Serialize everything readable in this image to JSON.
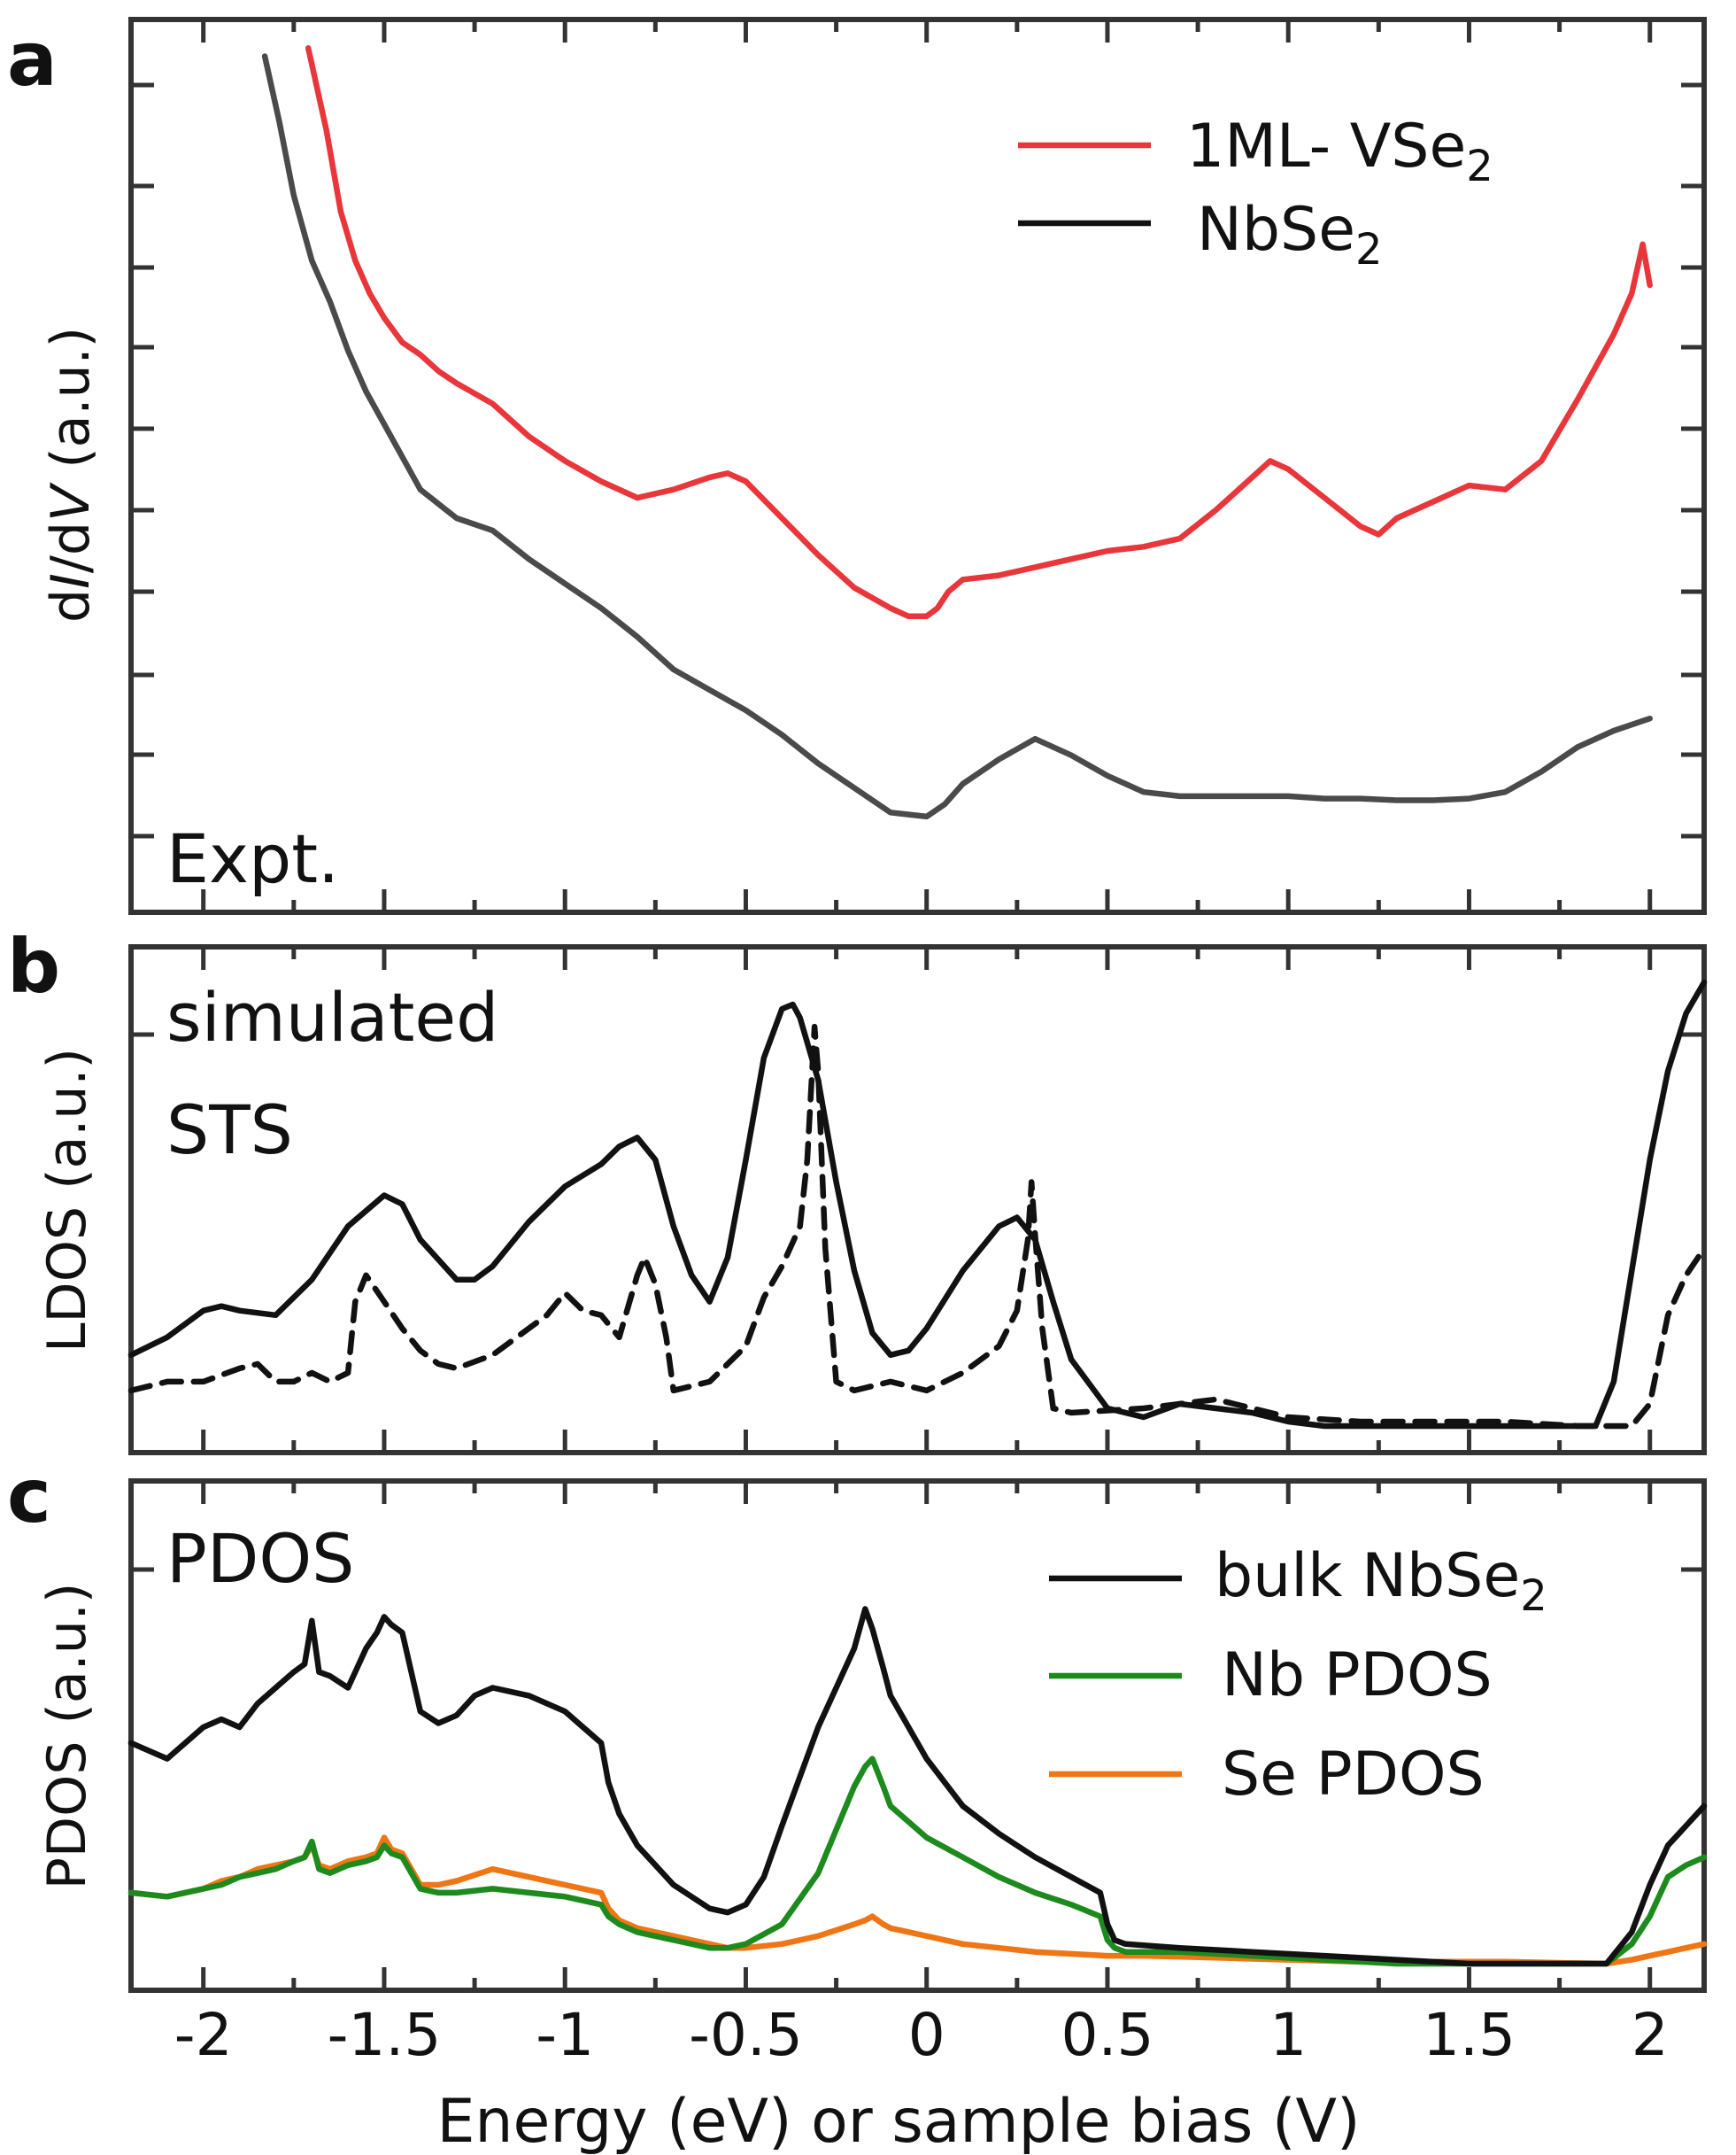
{
  "figure": {
    "panel_a_letter": "a",
    "panel_b_letter": "b",
    "panel_c_letter": "c",
    "xlabel": "Energy (eV) or sample bias (V)",
    "x_ticks": [
      "-2",
      "-1.5",
      "-1",
      "-0.5",
      "0",
      "0.5",
      "1",
      "1.5",
      "2"
    ]
  },
  "chart_data": [
    {
      "type": "line",
      "panel": "a",
      "annotation": "Expt.",
      "ylabel_parts": [
        "d",
        "I",
        "/d",
        "V",
        " (a.u.)"
      ],
      "xlim": [
        -2.2,
        2.15
      ],
      "ylim": [
        0,
        10
      ],
      "grid": false,
      "legend_position": "top-right",
      "series": [
        {
          "name": "1ML- VSe2",
          "name_main": "1ML- VSe",
          "name_sub": "2",
          "color": "#e8363a",
          "style": "solid",
          "x": [
            -1.71,
            -1.66,
            -1.62,
            -1.58,
            -1.54,
            -1.5,
            -1.45,
            -1.4,
            -1.35,
            -1.3,
            -1.2,
            -1.1,
            -1.0,
            -0.9,
            -0.8,
            -0.7,
            -0.6,
            -0.55,
            -0.5,
            -0.4,
            -0.3,
            -0.2,
            -0.1,
            -0.05,
            0.0,
            0.03,
            0.06,
            0.1,
            0.2,
            0.3,
            0.4,
            0.5,
            0.6,
            0.7,
            0.8,
            0.9,
            0.95,
            1.0,
            1.1,
            1.2,
            1.25,
            1.3,
            1.4,
            1.5,
            1.6,
            1.7,
            1.8,
            1.9,
            1.95,
            1.98,
            2.0
          ],
          "y": [
            10.3,
            9.3,
            8.3,
            7.7,
            7.3,
            7.0,
            6.7,
            6.55,
            6.35,
            6.2,
            5.95,
            5.55,
            5.25,
            5.0,
            4.8,
            4.9,
            5.05,
            5.1,
            5.0,
            4.55,
            4.1,
            3.7,
            3.45,
            3.35,
            3.35,
            3.45,
            3.65,
            3.8,
            3.85,
            3.95,
            4.05,
            4.15,
            4.2,
            4.3,
            4.65,
            5.05,
            5.25,
            5.15,
            4.8,
            4.45,
            4.35,
            4.55,
            4.75,
            4.95,
            4.9,
            5.25,
            6.0,
            6.8,
            7.3,
            7.9,
            7.4
          ]
        },
        {
          "name": "NbSe2",
          "name_main": "NbSe",
          "name_sub": "2",
          "color": "#4a4a4a",
          "style": "solid",
          "x": [
            -1.83,
            -1.79,
            -1.75,
            -1.7,
            -1.65,
            -1.6,
            -1.55,
            -1.5,
            -1.45,
            -1.4,
            -1.3,
            -1.2,
            -1.1,
            -1.0,
            -0.9,
            -0.8,
            -0.7,
            -0.6,
            -0.5,
            -0.4,
            -0.3,
            -0.2,
            -0.1,
            0.0,
            0.05,
            0.1,
            0.2,
            0.3,
            0.4,
            0.5,
            0.6,
            0.7,
            0.8,
            0.9,
            1.0,
            1.1,
            1.2,
            1.3,
            1.4,
            1.5,
            1.6,
            1.7,
            1.8,
            1.9,
            2.0
          ],
          "y": [
            10.2,
            9.4,
            8.5,
            7.7,
            7.2,
            6.6,
            6.1,
            5.7,
            5.3,
            4.9,
            4.55,
            4.4,
            4.05,
            3.75,
            3.45,
            3.1,
            2.7,
            2.45,
            2.2,
            1.9,
            1.55,
            1.25,
            0.95,
            0.9,
            1.05,
            1.3,
            1.6,
            1.85,
            1.65,
            1.4,
            1.2,
            1.15,
            1.15,
            1.15,
            1.15,
            1.12,
            1.12,
            1.1,
            1.1,
            1.12,
            1.2,
            1.45,
            1.75,
            1.95,
            2.1
          ]
        }
      ]
    },
    {
      "type": "line",
      "panel": "b",
      "annotation_lines": [
        "simulated",
        "STS"
      ],
      "ylabel": "LDOS (a.u.)",
      "xlim": [
        -2.2,
        2.15
      ],
      "ylim": [
        0,
        1
      ],
      "grid": false,
      "series": [
        {
          "color": "#111111",
          "style": "solid",
          "x": [
            -2.2,
            -2.1,
            -2.0,
            -1.95,
            -1.9,
            -1.8,
            -1.7,
            -1.6,
            -1.5,
            -1.45,
            -1.4,
            -1.3,
            -1.25,
            -1.2,
            -1.1,
            -1.0,
            -0.9,
            -0.85,
            -0.8,
            -0.75,
            -0.7,
            -0.65,
            -0.6,
            -0.55,
            -0.5,
            -0.45,
            -0.4,
            -0.37,
            -0.35,
            -0.3,
            -0.25,
            -0.2,
            -0.15,
            -0.1,
            -0.05,
            0.0,
            0.1,
            0.2,
            0.25,
            0.3,
            0.35,
            0.4,
            0.5,
            0.6,
            0.7,
            0.8,
            0.9,
            1.0,
            1.1,
            1.3,
            1.5,
            1.7,
            1.85,
            1.9,
            1.95,
            2.0,
            2.05,
            2.1,
            2.15
          ],
          "y": [
            0.16,
            0.2,
            0.26,
            0.27,
            0.26,
            0.25,
            0.33,
            0.45,
            0.52,
            0.5,
            0.42,
            0.33,
            0.33,
            0.36,
            0.46,
            0.54,
            0.59,
            0.63,
            0.65,
            0.6,
            0.45,
            0.34,
            0.28,
            0.38,
            0.6,
            0.83,
            0.94,
            0.95,
            0.92,
            0.78,
            0.55,
            0.35,
            0.21,
            0.16,
            0.17,
            0.22,
            0.35,
            0.45,
            0.47,
            0.42,
            0.28,
            0.15,
            0.04,
            0.02,
            0.05,
            0.04,
            0.03,
            0.01,
            0.0,
            0.0,
            0.0,
            0.0,
            0.0,
            0.1,
            0.35,
            0.6,
            0.8,
            0.93,
            1.0
          ]
        },
        {
          "color": "#111111",
          "style": "dashed",
          "x": [
            -2.2,
            -2.1,
            -2.0,
            -1.9,
            -1.85,
            -1.8,
            -1.75,
            -1.7,
            -1.65,
            -1.6,
            -1.58,
            -1.55,
            -1.5,
            -1.45,
            -1.4,
            -1.35,
            -1.3,
            -1.2,
            -1.1,
            -1.05,
            -1.0,
            -0.95,
            -0.9,
            -0.85,
            -0.8,
            -0.78,
            -0.75,
            -0.72,
            -0.7,
            -0.65,
            -0.6,
            -0.5,
            -0.45,
            -0.4,
            -0.35,
            -0.33,
            -0.32,
            -0.31,
            -0.3,
            -0.28,
            -0.25,
            -0.2,
            -0.1,
            0.0,
            0.1,
            0.2,
            0.25,
            0.28,
            0.29,
            0.3,
            0.32,
            0.35,
            0.4,
            0.6,
            0.8,
            1.0,
            1.2,
            1.4,
            1.6,
            1.8,
            1.95,
            2.0,
            2.05,
            2.1,
            2.15
          ],
          "y": [
            0.08,
            0.1,
            0.1,
            0.13,
            0.14,
            0.1,
            0.1,
            0.12,
            0.1,
            0.12,
            0.28,
            0.34,
            0.28,
            0.22,
            0.17,
            0.14,
            0.13,
            0.16,
            0.22,
            0.25,
            0.3,
            0.26,
            0.25,
            0.2,
            0.34,
            0.38,
            0.32,
            0.2,
            0.08,
            0.09,
            0.1,
            0.18,
            0.29,
            0.36,
            0.45,
            0.6,
            0.75,
            0.9,
            0.8,
            0.4,
            0.1,
            0.08,
            0.1,
            0.08,
            0.12,
            0.18,
            0.26,
            0.42,
            0.55,
            0.43,
            0.22,
            0.04,
            0.03,
            0.04,
            0.06,
            0.02,
            0.01,
            0.01,
            0.01,
            0.0,
            0.0,
            0.05,
            0.25,
            0.34,
            0.4
          ]
        }
      ]
    },
    {
      "type": "line",
      "panel": "c",
      "annotation": "PDOS",
      "ylabel": "PDOS (a.u.)",
      "xlim": [
        -2.2,
        2.15
      ],
      "ylim": [
        0,
        1
      ],
      "grid": false,
      "legend_position": "top-right",
      "series": [
        {
          "name": "bulk NbSe2",
          "name_main": "bulk NbSe",
          "name_sub": "2",
          "color": "#111111",
          "style": "solid",
          "x": [
            -2.2,
            -2.1,
            -2.0,
            -1.95,
            -1.9,
            -1.85,
            -1.8,
            -1.75,
            -1.72,
            -1.7,
            -1.68,
            -1.65,
            -1.6,
            -1.58,
            -1.55,
            -1.52,
            -1.5,
            -1.48,
            -1.45,
            -1.4,
            -1.35,
            -1.3,
            -1.25,
            -1.2,
            -1.1,
            -1.0,
            -0.95,
            -0.9,
            -0.88,
            -0.85,
            -0.8,
            -0.7,
            -0.6,
            -0.55,
            -0.5,
            -0.45,
            -0.4,
            -0.3,
            -0.2,
            -0.17,
            -0.15,
            -0.12,
            -0.1,
            0.0,
            0.1,
            0.2,
            0.3,
            0.4,
            0.48,
            0.5,
            0.52,
            0.55,
            0.7,
            0.9,
            1.1,
            1.3,
            1.5,
            1.7,
            1.88,
            1.95,
            2.0,
            2.05,
            2.1,
            2.15
          ],
          "y": [
            0.56,
            0.52,
            0.6,
            0.62,
            0.6,
            0.66,
            0.7,
            0.74,
            0.76,
            0.87,
            0.74,
            0.73,
            0.7,
            0.74,
            0.8,
            0.84,
            0.88,
            0.86,
            0.84,
            0.64,
            0.61,
            0.63,
            0.68,
            0.7,
            0.68,
            0.64,
            0.6,
            0.56,
            0.46,
            0.38,
            0.3,
            0.2,
            0.14,
            0.13,
            0.15,
            0.22,
            0.35,
            0.6,
            0.8,
            0.9,
            0.85,
            0.75,
            0.68,
            0.52,
            0.4,
            0.33,
            0.27,
            0.22,
            0.18,
            0.1,
            0.06,
            0.05,
            0.04,
            0.03,
            0.02,
            0.01,
            0.0,
            0.0,
            0.0,
            0.08,
            0.2,
            0.3,
            0.35,
            0.4
          ]
        },
        {
          "name": "Nb PDOS",
          "color": "#1d8a1d",
          "style": "solid",
          "x": [
            -2.2,
            -2.1,
            -2.0,
            -1.95,
            -1.9,
            -1.85,
            -1.8,
            -1.75,
            -1.72,
            -1.7,
            -1.68,
            -1.65,
            -1.6,
            -1.55,
            -1.52,
            -1.5,
            -1.48,
            -1.45,
            -1.4,
            -1.35,
            -1.3,
            -1.2,
            -1.1,
            -1.0,
            -0.9,
            -0.88,
            -0.85,
            -0.8,
            -0.7,
            -0.6,
            -0.55,
            -0.5,
            -0.4,
            -0.3,
            -0.2,
            -0.17,
            -0.15,
            -0.12,
            -0.1,
            0.0,
            0.1,
            0.2,
            0.3,
            0.4,
            0.48,
            0.5,
            0.52,
            0.55,
            0.7,
            0.9,
            1.1,
            1.3,
            1.5,
            1.7,
            1.88,
            1.95,
            2.0,
            2.05,
            2.1,
            2.15
          ],
          "y": [
            0.18,
            0.17,
            0.19,
            0.2,
            0.22,
            0.23,
            0.24,
            0.26,
            0.27,
            0.31,
            0.24,
            0.23,
            0.25,
            0.26,
            0.27,
            0.3,
            0.28,
            0.27,
            0.19,
            0.18,
            0.18,
            0.19,
            0.18,
            0.17,
            0.15,
            0.12,
            0.1,
            0.08,
            0.06,
            0.04,
            0.04,
            0.05,
            0.1,
            0.23,
            0.45,
            0.5,
            0.52,
            0.45,
            0.4,
            0.32,
            0.27,
            0.22,
            0.18,
            0.15,
            0.12,
            0.06,
            0.04,
            0.03,
            0.03,
            0.02,
            0.01,
            0.0,
            0.0,
            0.0,
            0.0,
            0.05,
            0.12,
            0.22,
            0.25,
            0.27
          ]
        },
        {
          "name": "Se PDOS",
          "color": "#f07514",
          "style": "solid",
          "x": [
            -2.2,
            -2.1,
            -2.0,
            -1.95,
            -1.9,
            -1.85,
            -1.8,
            -1.75,
            -1.72,
            -1.7,
            -1.68,
            -1.65,
            -1.6,
            -1.55,
            -1.52,
            -1.5,
            -1.48,
            -1.45,
            -1.4,
            -1.35,
            -1.3,
            -1.2,
            -1.1,
            -1.0,
            -0.9,
            -0.88,
            -0.85,
            -0.8,
            -0.7,
            -0.6,
            -0.55,
            -0.5,
            -0.4,
            -0.3,
            -0.2,
            -0.17,
            -0.15,
            -0.12,
            -0.1,
            0.0,
            0.1,
            0.2,
            0.3,
            0.4,
            0.5,
            0.6,
            0.8,
            1.0,
            1.2,
            1.4,
            1.6,
            1.88,
            1.95,
            2.0,
            2.05,
            2.1,
            2.15
          ],
          "y": [
            0.18,
            0.17,
            0.19,
            0.21,
            0.22,
            0.24,
            0.25,
            0.26,
            0.27,
            0.3,
            0.25,
            0.24,
            0.26,
            0.27,
            0.28,
            0.32,
            0.29,
            0.28,
            0.2,
            0.2,
            0.21,
            0.24,
            0.22,
            0.2,
            0.18,
            0.14,
            0.11,
            0.09,
            0.07,
            0.05,
            0.04,
            0.04,
            0.05,
            0.07,
            0.1,
            0.11,
            0.12,
            0.1,
            0.09,
            0.07,
            0.05,
            0.04,
            0.03,
            0.025,
            0.02,
            0.02,
            0.015,
            0.01,
            0.005,
            0.005,
            0.005,
            0.0,
            0.01,
            0.02,
            0.03,
            0.04,
            0.05
          ]
        }
      ]
    }
  ]
}
